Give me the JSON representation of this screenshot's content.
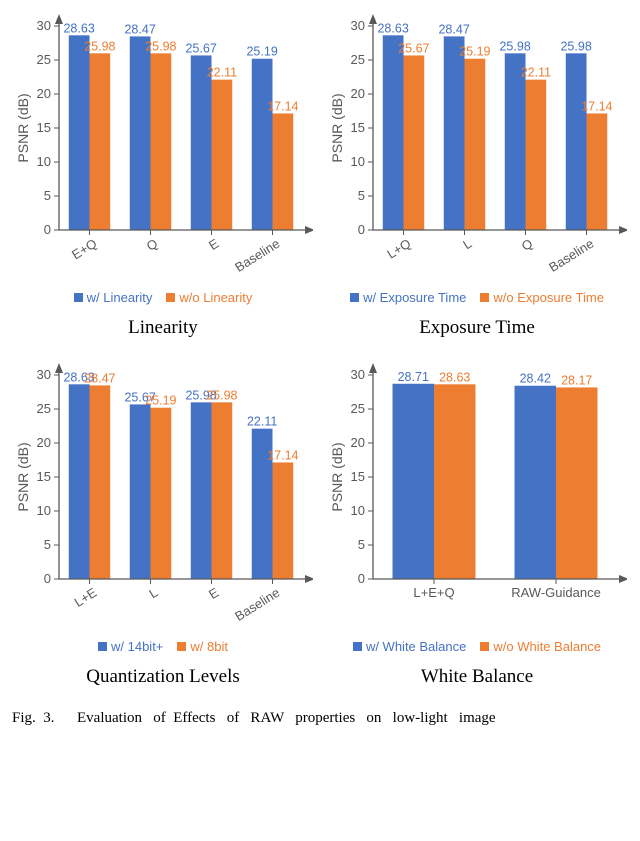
{
  "colors": {
    "series_a": "#4472c4",
    "series_b": "#ed7d31",
    "axis": "#595959",
    "text": "#000000",
    "bg": "#ffffff"
  },
  "ylabel": "PSNR (dB)",
  "ylim": [
    0,
    30
  ],
  "ytick_step": 5,
  "bar_width": 0.34,
  "caption_prefix": "Fig.  3.",
  "caption_rest": "      Evaluation   of  Effects   of   RAW   properties   on   low-light   image",
  "charts": [
    {
      "subtitle": "Linearity",
      "legend_a": "w/ Linearity",
      "legend_b": "w/o Linearity",
      "categories": [
        "E+Q",
        "Q",
        "E",
        "Baseline"
      ],
      "rotate": -32,
      "a": [
        28.63,
        28.47,
        25.67,
        25.19
      ],
      "b": [
        25.98,
        25.98,
        22.11,
        17.14
      ]
    },
    {
      "subtitle": "Exposure Time",
      "legend_a": "w/ Exposure Time",
      "legend_b": "w/o Exposure Time",
      "categories": [
        "L+Q",
        "L",
        "Q",
        "Baseline"
      ],
      "rotate": -32,
      "a": [
        28.63,
        28.47,
        25.98,
        25.98
      ],
      "b": [
        25.67,
        25.19,
        22.11,
        17.14
      ]
    },
    {
      "subtitle": "Quantization Levels",
      "legend_a": "w/ 14bit+",
      "legend_b": "w/ 8bit",
      "categories": [
        "L+E",
        "L",
        "E",
        "Baseline"
      ],
      "rotate": -32,
      "a": [
        28.63,
        25.67,
        25.98,
        22.11
      ],
      "b": [
        28.47,
        25.19,
        25.98,
        17.14
      ]
    },
    {
      "subtitle": "White Balance",
      "legend_a": "w/   White Balance",
      "legend_b": "w/o White Balance",
      "categories": [
        "L+E+Q",
        "RAW-Guidance"
      ],
      "rotate": 0,
      "a": [
        28.71,
        28.42
      ],
      "b": [
        28.63,
        28.17
      ]
    }
  ]
}
